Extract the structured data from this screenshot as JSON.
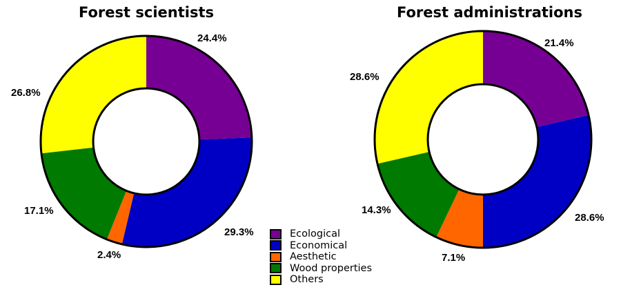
{
  "chart_data": [
    {
      "type": "pie",
      "subtype": "donut",
      "title": "Forest scientists",
      "categories": [
        "Ecological",
        "Economical",
        "Aesthetic",
        "Wood properties",
        "Others"
      ],
      "values": [
        24.4,
        29.3,
        2.4,
        17.1,
        26.8
      ],
      "labels": [
        "24.4%",
        "29.3%",
        "2.4%",
        "17.1%",
        "26.8%"
      ],
      "start_angle": "12 o'clock, clockwise"
    },
    {
      "type": "pie",
      "subtype": "donut",
      "title": "Forest administrations",
      "categories": [
        "Ecological",
        "Economical",
        "Aesthetic",
        "Wood properties",
        "Others"
      ],
      "values": [
        21.4,
        28.6,
        7.1,
        14.3,
        28.6
      ],
      "labels": [
        "21.4%",
        "28.6%",
        "7.1%",
        "14.3%",
        "28.6%"
      ],
      "start_angle": "12 o'clock, clockwise"
    }
  ],
  "charts": [
    {
      "title": "Forest scientists",
      "labels": [
        "24.4%",
        "29.3%",
        "2.4%",
        "17.1%",
        "26.8%"
      ]
    },
    {
      "title": "Forest administrations",
      "labels": [
        "21.4%",
        "28.6%",
        "7.1%",
        "14.3%",
        "28.6%"
      ]
    }
  ],
  "legend": {
    "position": "bottom-center between charts",
    "items": [
      {
        "label": "Ecological",
        "color": "#770094"
      },
      {
        "label": "Economical",
        "color": "#0000c4"
      },
      {
        "label": "Aesthetic",
        "color": "#ff6600"
      },
      {
        "label": "Wood properties",
        "color": "#007a00"
      },
      {
        "label": "Others",
        "color": "#ffff00"
      }
    ]
  }
}
